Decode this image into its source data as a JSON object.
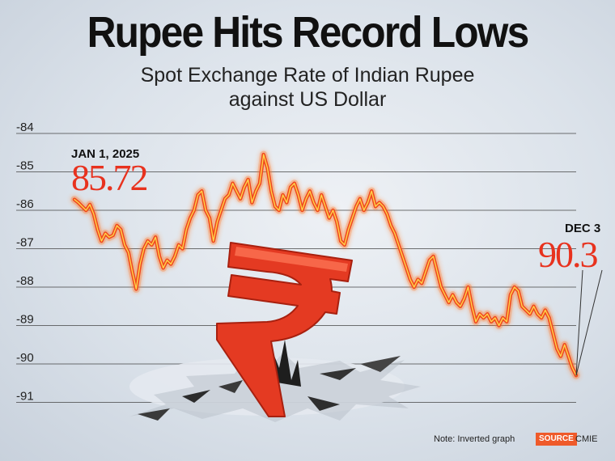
{
  "title": "Rupee Hits Record Lows",
  "subtitle": "Spot Exchange Rate of Indian Rupee against US Dollar",
  "note": "Note: Inverted graph",
  "source_label": "SOURCE",
  "source_name": "CMIE",
  "colors": {
    "line": "#f04a1e",
    "glow": "#ff7a2a",
    "highlight": "#ffd34a",
    "accent": "#e8321e",
    "grid": "#444444",
    "rupee_symbol": "#e43a22"
  },
  "icons": [
    "rupee-symbol-icon",
    "ground-crack-icon"
  ],
  "chart_data": {
    "type": "line",
    "title": "Rupee Hits Record Lows",
    "subtitle": "Spot Exchange Rate of Indian Rupee against US Dollar",
    "xlabel": "",
    "ylabel": "",
    "y_inverted": true,
    "ylim": [
      -84,
      -91
    ],
    "yticks": [
      -84,
      -85,
      -86,
      -87,
      -88,
      -89,
      -90,
      -91
    ],
    "ytick_labels": [
      "-84",
      "-85",
      "-86",
      "-87",
      "-88",
      "-89",
      "-90",
      "-91"
    ],
    "grid": true,
    "legend": "none",
    "x_start": "2025-01-01",
    "x_end": "2025-12-03",
    "annotations": [
      {
        "date_label": "JAN 1, 2025",
        "value_label": "85.72",
        "position": "start"
      },
      {
        "date_label": "DEC 3",
        "value_label": "90.3",
        "position": "end"
      }
    ],
    "series": [
      {
        "values": [
          -85.72,
          -85.8,
          -85.9,
          -86.0,
          -85.85,
          -86.1,
          -86.5,
          -86.8,
          -86.6,
          -86.7,
          -86.65,
          -86.4,
          -86.5,
          -86.9,
          -87.1,
          -87.6,
          -88.05,
          -87.4,
          -87.0,
          -86.8,
          -86.9,
          -86.7,
          -87.2,
          -87.5,
          -87.3,
          -87.4,
          -87.2,
          -86.9,
          -87.0,
          -86.5,
          -86.2,
          -86.0,
          -85.6,
          -85.5,
          -86.0,
          -86.2,
          -86.8,
          -86.3,
          -86.0,
          -85.7,
          -85.6,
          -85.3,
          -85.5,
          -85.7,
          -85.4,
          -85.2,
          -85.8,
          -85.5,
          -85.3,
          -84.55,
          -84.9,
          -85.5,
          -85.9,
          -86.0,
          -85.6,
          -85.8,
          -85.4,
          -85.3,
          -85.6,
          -86.0,
          -85.7,
          -85.5,
          -85.8,
          -86.0,
          -85.6,
          -85.9,
          -86.2,
          -86.0,
          -86.3,
          -86.8,
          -86.9,
          -86.5,
          -86.2,
          -85.9,
          -85.7,
          -86.0,
          -85.8,
          -85.5,
          -85.9,
          -85.8,
          -85.9,
          -86.1,
          -86.4,
          -86.6,
          -86.9,
          -87.2,
          -87.5,
          -87.8,
          -88.0,
          -87.8,
          -87.9,
          -87.6,
          -87.3,
          -87.2,
          -87.6,
          -88.0,
          -88.2,
          -88.4,
          -88.2,
          -88.4,
          -88.5,
          -88.3,
          -88.0,
          -88.5,
          -88.9,
          -88.7,
          -88.8,
          -88.7,
          -88.9,
          -88.8,
          -89.0,
          -88.8,
          -88.9,
          -88.2,
          -88.0,
          -88.1,
          -88.5,
          -88.6,
          -88.7,
          -88.5,
          -88.7,
          -88.8,
          -88.6,
          -88.8,
          -89.2,
          -89.6,
          -89.8,
          -89.5,
          -89.8,
          -90.1,
          -90.3
        ]
      }
    ]
  }
}
